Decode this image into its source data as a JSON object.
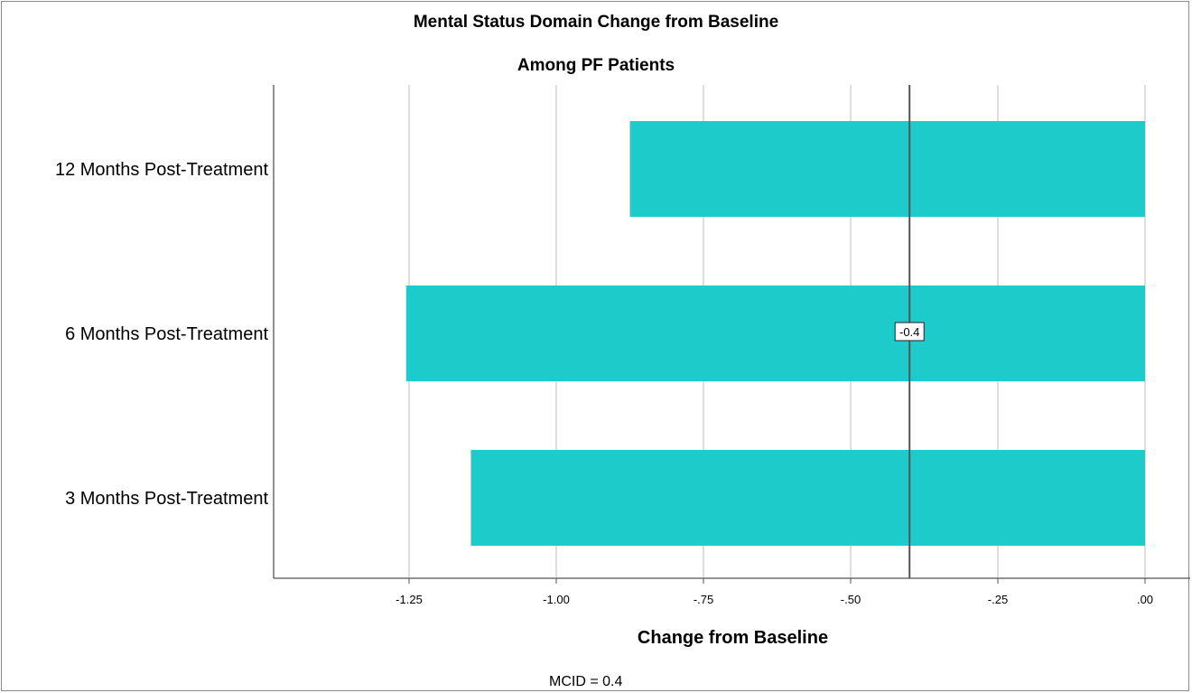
{
  "chart_data": {
    "type": "bar",
    "orientation": "horizontal",
    "title": "Mental Status Domain Change from Baseline",
    "subtitle": "Among PF Patients",
    "xlabel": "Change from Baseline",
    "ylabel": "",
    "categories": [
      "12 Months Post-Treatment",
      "6 Months Post-Treatment",
      "3 Months Post-Treatment"
    ],
    "values": [
      -0.875,
      -1.255,
      -1.145
    ],
    "xlim": [
      -1.5,
      0.05
    ],
    "xticks": [
      -1.25,
      -1.0,
      -0.75,
      -0.5,
      -0.25,
      0.0
    ],
    "xtick_labels": [
      "-1.25",
      "-1.00",
      "-.75",
      "-.50",
      "-.25",
      ".00"
    ],
    "grid": "vertical",
    "bar_color": "#1ecbcb",
    "reference_line": {
      "value": -0.4,
      "label": "-0.4",
      "color": "#555555"
    },
    "note": "MCID = 0.4"
  }
}
